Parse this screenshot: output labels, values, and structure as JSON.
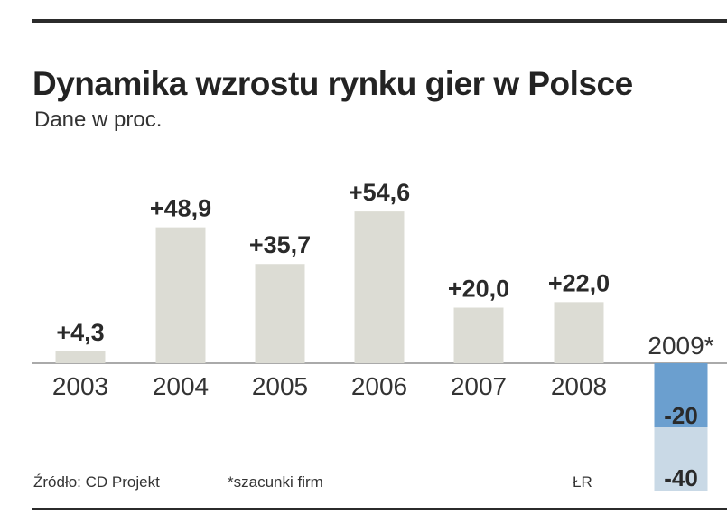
{
  "header": {
    "title": "Dynamika wzrostu rynku gier w Polsce",
    "subtitle": "Dane w proc."
  },
  "footer": {
    "source": "Źródło: CD Projekt",
    "note": "*szacunki firm",
    "credit": "ŁR"
  },
  "colors": {
    "bar": "#dcdcd4",
    "estimate_dark": "#6b9fcf",
    "estimate_light": "#c9d9e6",
    "axis": "#555555",
    "rule": "#2b2b2b"
  },
  "chart_data": {
    "type": "bar",
    "title": "Dynamika wzrostu rynku gier w Polsce",
    "subtitle": "Dane w proc.",
    "categories": [
      "2003",
      "2004",
      "2005",
      "2006",
      "2007",
      "2008",
      "2009*"
    ],
    "values": [
      4.3,
      48.9,
      35.7,
      54.6,
      20.0,
      22.0,
      null
    ],
    "value_labels": [
      "+4,3",
      "+48,9",
      "+35,7",
      "+54,6",
      "+20,0",
      "+22,0",
      ""
    ],
    "estimate_2009": {
      "category": "2009*",
      "range": [
        -40,
        -20
      ],
      "labels": [
        "-20",
        "-40"
      ]
    },
    "ylim": [
      -40,
      55
    ],
    "grid": false,
    "legend": "none"
  }
}
